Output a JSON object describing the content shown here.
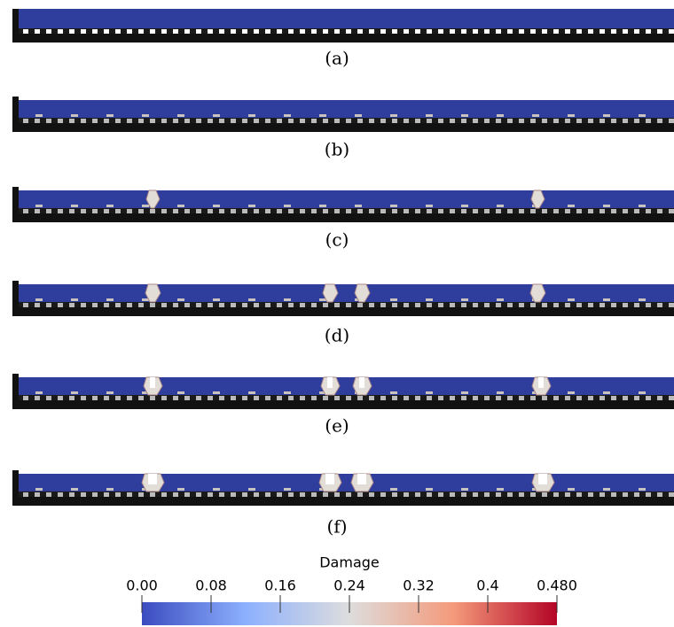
{
  "panels": [
    {
      "label": "(a)"
    },
    {
      "label": "(b)"
    },
    {
      "label": "(c)"
    },
    {
      "label": "(d)"
    },
    {
      "label": "(e)"
    },
    {
      "label": "(f)"
    }
  ],
  "colorbar": {
    "title": "Damage",
    "lim": [
      0,
      0.48
    ],
    "ticks": [
      {
        "value": 0,
        "label": "0.00"
      },
      0.08,
      0.16,
      0.24,
      0.32,
      0.4,
      {
        "value": 0.48,
        "label": "0.480"
      }
    ]
  }
}
